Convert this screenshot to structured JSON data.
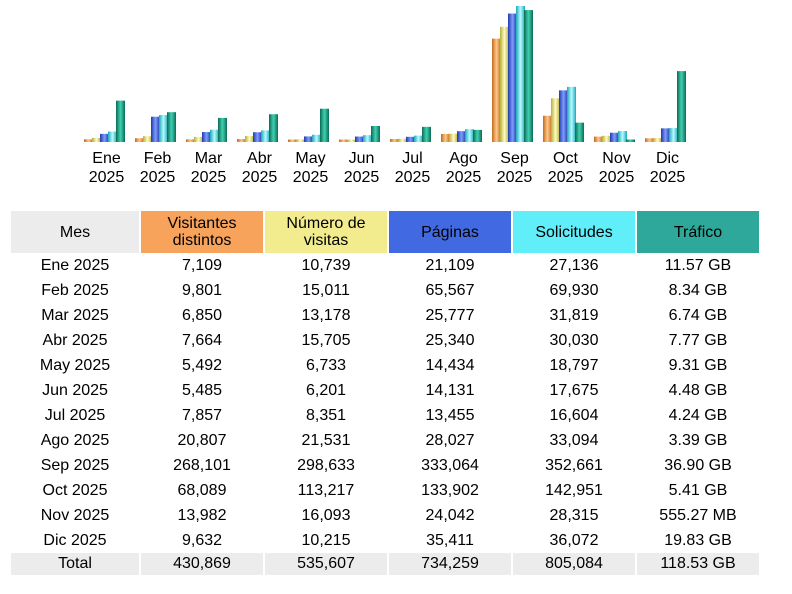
{
  "chart_data": {
    "type": "bar",
    "categories": [
      [
        "Ene",
        "2025"
      ],
      [
        "Feb",
        "2025"
      ],
      [
        "Mar",
        "2025"
      ],
      [
        "Abr",
        "2025"
      ],
      [
        "May",
        "2025"
      ],
      [
        "Jun",
        "2025"
      ],
      [
        "Jul",
        "2025"
      ],
      [
        "Ago",
        "2025"
      ],
      [
        "Sep",
        "2025"
      ],
      [
        "Oct",
        "2025"
      ],
      [
        "Nov",
        "2025"
      ],
      [
        "Dic",
        "2025"
      ]
    ],
    "series": [
      {
        "name": "Visitantes distintos",
        "values": [
          7109,
          9801,
          6850,
          7664,
          5492,
          5485,
          7857,
          20807,
          268101,
          68089,
          13982,
          9632
        ],
        "color": "#f7a35c",
        "gradient": [
          "#c46a1c",
          "#ffc98a"
        ]
      },
      {
        "name": "Número de visitas",
        "values": [
          10739,
          15011,
          13178,
          15705,
          6733,
          6201,
          8351,
          21531,
          298633,
          113217,
          16093,
          10215
        ],
        "color": "#f2ec8e",
        "gradient": [
          "#b5ad3c",
          "#fffcc0"
        ]
      },
      {
        "name": "Páginas",
        "values": [
          21109,
          65567,
          25777,
          25340,
          14434,
          14131,
          13455,
          28027,
          333064,
          133902,
          24042,
          35411
        ],
        "color": "#4169e1",
        "gradient": [
          "#1d3aa8",
          "#7f9cff"
        ]
      },
      {
        "name": "Solicitudes",
        "values": [
          27136,
          69930,
          31819,
          30030,
          18797,
          17675,
          16604,
          33094,
          352661,
          142951,
          28315,
          36072
        ],
        "color": "#60eef8",
        "gradient": [
          "#1aa9b8",
          "#b8fbff"
        ]
      },
      {
        "name": "Tráfico",
        "values": [
          11.57,
          8.34,
          6.74,
          7.77,
          9.31,
          4.48,
          4.24,
          3.39,
          36.9,
          5.41,
          0.54,
          19.83
        ],
        "color": "#1fa088",
        "gradient": [
          "#0b6b56",
          "#3fd1b0"
        ]
      }
    ]
  },
  "table": {
    "headers": [
      "Mes",
      "Visitantes\ndistintos",
      "Número de\nvisitas",
      "Páginas",
      "Solicitudes",
      "Tráfico"
    ],
    "header_colors": [
      "#ececec",
      "#f7a35c",
      "#f2ec8e",
      "#4169e1",
      "#60eef8",
      "#2ea89a"
    ],
    "rows": [
      [
        "Ene 2025",
        "7,109",
        "10,739",
        "21,109",
        "27,136",
        "11.57 GB"
      ],
      [
        "Feb 2025",
        "9,801",
        "15,011",
        "65,567",
        "69,930",
        "8.34 GB"
      ],
      [
        "Mar 2025",
        "6,850",
        "13,178",
        "25,777",
        "31,819",
        "6.74 GB"
      ],
      [
        "Abr 2025",
        "7,664",
        "15,705",
        "25,340",
        "30,030",
        "7.77 GB"
      ],
      [
        "May 2025",
        "5,492",
        "6,733",
        "14,434",
        "18,797",
        "9.31 GB"
      ],
      [
        "Jun 2025",
        "5,485",
        "6,201",
        "14,131",
        "17,675",
        "4.48 GB"
      ],
      [
        "Jul 2025",
        "7,857",
        "8,351",
        "13,455",
        "16,604",
        "4.24 GB"
      ],
      [
        "Ago 2025",
        "20,807",
        "21,531",
        "28,027",
        "33,094",
        "3.39 GB"
      ],
      [
        "Sep 2025",
        "268,101",
        "298,633",
        "333,064",
        "352,661",
        "36.90 GB"
      ],
      [
        "Oct 2025",
        "68,089",
        "113,217",
        "133,902",
        "142,951",
        "5.41 GB"
      ],
      [
        "Nov 2025",
        "13,982",
        "16,093",
        "24,042",
        "28,315",
        "555.27 MB"
      ],
      [
        "Dic 2025",
        "9,632",
        "10,215",
        "35,411",
        "36,072",
        "19.83 GB"
      ]
    ],
    "total": [
      "Total",
      "430,869",
      "535,607",
      "734,259",
      "805,084",
      "118.53 GB"
    ]
  }
}
